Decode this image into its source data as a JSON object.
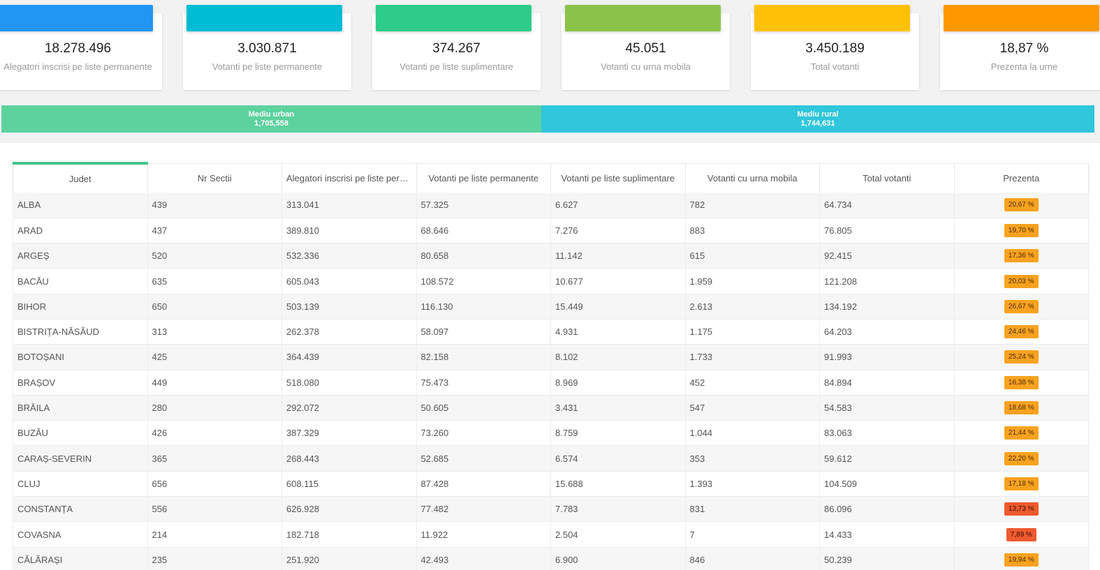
{
  "cards": [
    {
      "value": "18.278.496",
      "label": "Alegatori inscrisi pe liste permanente",
      "color": "#2196f3"
    },
    {
      "value": "3.030.871",
      "label": "Votanti pe liste permanente",
      "color": "#00bcd4"
    },
    {
      "value": "374.267",
      "label": "Votanti pe liste suplimentare",
      "color": "#2ecc8b"
    },
    {
      "value": "45.051",
      "label": "Votanti cu urna mobila",
      "color": "#8bc34a"
    },
    {
      "value": "3.450.189",
      "label": "Total votanti",
      "color": "#ffc107"
    },
    {
      "value": "18,87 %",
      "label": "Prezenta la urne",
      "color": "#ff9800"
    }
  ],
  "environment": {
    "urban": {
      "label": "Mediu urban",
      "value": "1,705,558",
      "color": "#5dd29e"
    },
    "rural": {
      "label": "Mediu rural",
      "value": "1,744,631",
      "color": "#30c6dc"
    }
  },
  "table": {
    "headers": [
      "Judet",
      "Nr Sectii",
      "Alegatori inscrisi pe liste permanente",
      "Votanti pe liste permanente",
      "Votanti pe liste suplimentare",
      "Votanti cu urna mobila",
      "Total votanti",
      "Prezenta"
    ],
    "rows": [
      {
        "judet": "ALBA",
        "sectii": "439",
        "alegatori": "313.041",
        "permanente": "57.325",
        "suplimentare": "6.627",
        "mobila": "782",
        "total": "64.734",
        "prezenta": "20,67 %",
        "level": "orange"
      },
      {
        "judet": "ARAD",
        "sectii": "437",
        "alegatori": "389.810",
        "permanente": "68.646",
        "suplimentare": "7.276",
        "mobila": "883",
        "total": "76.805",
        "prezenta": "19,70 %",
        "level": "orange"
      },
      {
        "judet": "ARGEȘ",
        "sectii": "520",
        "alegatori": "532.336",
        "permanente": "80.658",
        "suplimentare": "11.142",
        "mobila": "615",
        "total": "92.415",
        "prezenta": "17,36 %",
        "level": "orange"
      },
      {
        "judet": "BACĂU",
        "sectii": "635",
        "alegatori": "605.043",
        "permanente": "108.572",
        "suplimentare": "10.677",
        "mobila": "1.959",
        "total": "121.208",
        "prezenta": "20,03 %",
        "level": "orange"
      },
      {
        "judet": "BIHOR",
        "sectii": "650",
        "alegatori": "503.139",
        "permanente": "116.130",
        "suplimentare": "15.449",
        "mobila": "2.613",
        "total": "134.192",
        "prezenta": "26,67 %",
        "level": "orange"
      },
      {
        "judet": "BISTRIȚA-NĂSĂUD",
        "sectii": "313",
        "alegatori": "262.378",
        "permanente": "58.097",
        "suplimentare": "4.931",
        "mobila": "1.175",
        "total": "64.203",
        "prezenta": "24,46 %",
        "level": "orange"
      },
      {
        "judet": "BOTOȘANI",
        "sectii": "425",
        "alegatori": "364.439",
        "permanente": "82.158",
        "suplimentare": "8.102",
        "mobila": "1.733",
        "total": "91.993",
        "prezenta": "25,24 %",
        "level": "orange"
      },
      {
        "judet": "BRAȘOV",
        "sectii": "449",
        "alegatori": "518.080",
        "permanente": "75.473",
        "suplimentare": "8.969",
        "mobila": "452",
        "total": "84.894",
        "prezenta": "16,38 %",
        "level": "orange"
      },
      {
        "judet": "BRĂILA",
        "sectii": "280",
        "alegatori": "292.072",
        "permanente": "50.605",
        "suplimentare": "3.431",
        "mobila": "547",
        "total": "54.583",
        "prezenta": "18,68 %",
        "level": "orange"
      },
      {
        "judet": "BUZĂU",
        "sectii": "426",
        "alegatori": "387.329",
        "permanente": "73.260",
        "suplimentare": "8.759",
        "mobila": "1.044",
        "total": "83.063",
        "prezenta": "21,44 %",
        "level": "orange"
      },
      {
        "judet": "CARAȘ-SEVERIN",
        "sectii": "365",
        "alegatori": "268.443",
        "permanente": "52.685",
        "suplimentare": "6.574",
        "mobila": "353",
        "total": "59.612",
        "prezenta": "22,20 %",
        "level": "orange"
      },
      {
        "judet": "CLUJ",
        "sectii": "656",
        "alegatori": "608.115",
        "permanente": "87.428",
        "suplimentare": "15.688",
        "mobila": "1.393",
        "total": "104.509",
        "prezenta": "17,18 %",
        "level": "orange"
      },
      {
        "judet": "CONSTANȚA",
        "sectii": "556",
        "alegatori": "626.928",
        "permanente": "77.482",
        "suplimentare": "7.783",
        "mobila": "831",
        "total": "86.096",
        "prezenta": "13,73 %",
        "level": "red"
      },
      {
        "judet": "COVASNA",
        "sectii": "214",
        "alegatori": "182.718",
        "permanente": "11.922",
        "suplimentare": "2.504",
        "mobila": "7",
        "total": "14.433",
        "prezenta": "7,89 %",
        "level": "red"
      },
      {
        "judet": "CĂLĂRAȘI",
        "sectii": "235",
        "alegatori": "251.920",
        "permanente": "42.493",
        "suplimentare": "6.900",
        "mobila": "846",
        "total": "50.239",
        "prezenta": "19,94 %",
        "level": "orange"
      }
    ]
  }
}
